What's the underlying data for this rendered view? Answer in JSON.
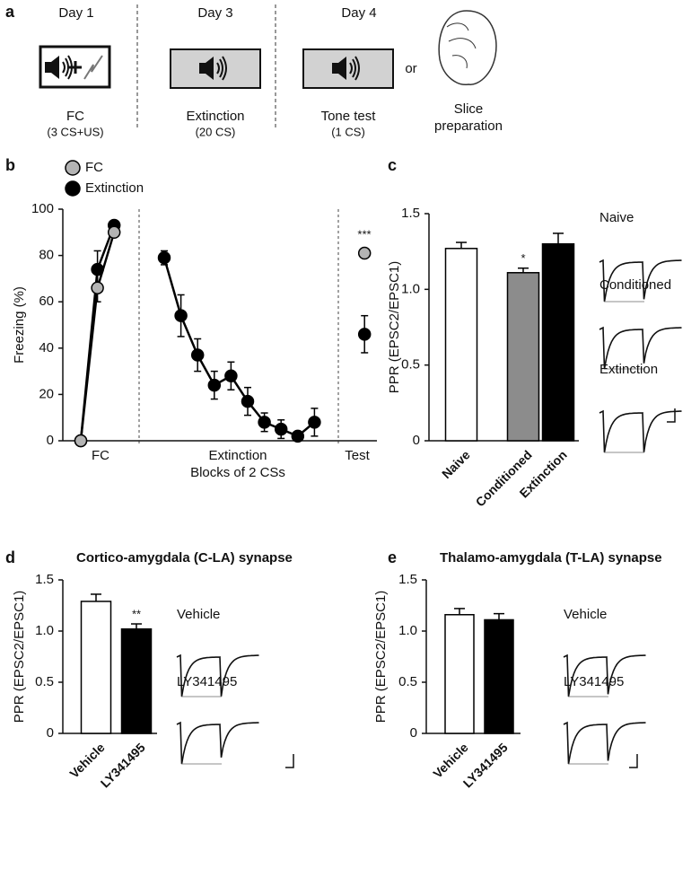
{
  "panel_labels": [
    "a",
    "b",
    "c",
    "d",
    "e"
  ],
  "timeline": {
    "days": [
      "Day 1",
      "Day 3",
      "Day 4"
    ],
    "steps": [
      {
        "label": "FC",
        "detail": "(3 CS+US)"
      },
      {
        "label": "Extinction",
        "detail": "(20 CS)"
      },
      {
        "label": "Tone test",
        "detail": "(1 CS)"
      }
    ],
    "or": "or",
    "slice": "Slice preparation"
  },
  "chart_data": [
    {
      "type": "line",
      "ylabel": "Freezing (%)",
      "xlabel": "Blocks of 2 CSs",
      "group_labels": [
        "FC",
        "Extinction",
        "Test"
      ],
      "annotation": "***",
      "categories": [
        null,
        null,
        null,
        null,
        null,
        null,
        null,
        null,
        null,
        null,
        null,
        null,
        null,
        null,
        null,
        null,
        null,
        null
      ],
      "series": [
        {
          "name": "FC",
          "color": "#b4b4b4",
          "values": [
            0,
            66,
            90,
            null,
            null,
            null,
            null,
            null,
            null,
            null,
            null,
            null,
            null,
            null,
            null,
            null,
            null,
            81
          ],
          "errors": [
            0,
            6,
            2,
            null,
            null,
            null,
            null,
            null,
            null,
            null,
            null,
            null,
            null,
            null,
            null,
            null,
            null,
            2
          ]
        },
        {
          "name": "Extinction",
          "color": "#000000",
          "values": [
            0,
            74,
            93,
            null,
            null,
            79,
            54,
            37,
            24,
            28,
            17,
            8,
            5,
            2,
            8,
            null,
            null,
            46
          ],
          "errors": [
            0,
            8,
            2,
            null,
            null,
            3,
            9,
            7,
            6,
            6,
            6,
            4,
            4,
            2,
            6,
            null,
            null,
            8
          ]
        }
      ],
      "ylim": [
        0,
        100
      ],
      "yticks": [
        0,
        20,
        40,
        60,
        80,
        100
      ]
    },
    {
      "type": "bar",
      "ylabel": "PPR (EPSC2/EPSC1)",
      "annotation": "*",
      "trace_labels": [
        "Naive",
        "Conditioned",
        "Extinction"
      ],
      "categories": [
        "Naive",
        "Conditioned",
        "Extinction"
      ],
      "values": [
        1.27,
        1.11,
        1.3
      ],
      "errors": [
        0.04,
        0.03,
        0.07
      ],
      "colors": [
        "#ffffff",
        "#8c8c8c",
        "#000000"
      ],
      "ylim": [
        0,
        1.5
      ],
      "yticks": [
        0,
        0.5,
        {
          "value": 1,
          "label": "1.0"
        },
        1.5
      ]
    },
    {
      "type": "bar",
      "title": "Cortico-amygdala (C-LA) synapse",
      "ylabel": "PPR (EPSC2/EPSC1)",
      "annotation": "**",
      "trace_labels": [
        "Vehicle",
        "LY341495"
      ],
      "categories": [
        "Vehicle",
        "LY341495"
      ],
      "values": [
        1.29,
        1.02
      ],
      "errors": [
        0.07,
        0.05
      ],
      "colors": [
        "#ffffff",
        "#000000"
      ],
      "ylim": [
        0,
        1.5
      ],
      "yticks": [
        0,
        0.5,
        {
          "value": 1,
          "label": "1.0"
        },
        1.5
      ]
    },
    {
      "type": "bar",
      "title": "Thalamo-amygdala (T-LA) synapse",
      "ylabel": "PPR (EPSC2/EPSC1)",
      "trace_labels": [
        "Vehicle",
        "LY341495"
      ],
      "categories": [
        "Vehicle",
        "LY341495"
      ],
      "values": [
        1.16,
        1.11
      ],
      "errors": [
        0.06,
        0.06
      ],
      "colors": [
        "#ffffff",
        "#000000"
      ],
      "ylim": [
        0,
        1.5
      ],
      "yticks": [
        0,
        0.5,
        {
          "value": 1,
          "label": "1.0"
        },
        1.5
      ]
    }
  ]
}
